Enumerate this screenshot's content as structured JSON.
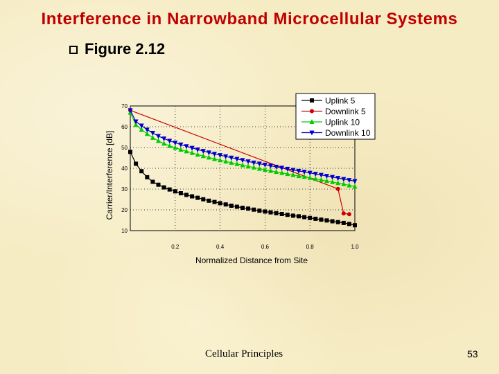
{
  "slide": {
    "title": "Interference in Narrowband Microcellular Systems",
    "bullet": "Figure 2.12",
    "footer_text": "Cellular Principles",
    "page_number": "53"
  },
  "chart_data": {
    "type": "line",
    "xlabel": "Normalized Distance from Site",
    "ylabel": "Carrier/Interference [dB]",
    "xlim": [
      0.0,
      1.0
    ],
    "ylim": [
      10,
      70
    ],
    "x_ticks": [
      "0.2",
      "0.4",
      "0.6",
      "0.8",
      "1.0"
    ],
    "y_ticks": [
      "10",
      "20",
      "30",
      "40",
      "50",
      "60",
      "70"
    ],
    "grid": true,
    "legend_position": "top-right",
    "series": [
      {
        "name": "Uplink 5",
        "color": "#000000",
        "marker": "square",
        "x": [
          0.0,
          0.025,
          0.05,
          0.075,
          0.1,
          0.125,
          0.15,
          0.175,
          0.2,
          0.225,
          0.25,
          0.275,
          0.3,
          0.325,
          0.35,
          0.375,
          0.4,
          0.425,
          0.45,
          0.475,
          0.5,
          0.525,
          0.55,
          0.575,
          0.6,
          0.625,
          0.65,
          0.675,
          0.7,
          0.725,
          0.75,
          0.775,
          0.8,
          0.825,
          0.85,
          0.875,
          0.9,
          0.925,
          0.95,
          0.975,
          1.0
        ],
        "y": [
          47.9,
          42.2,
          38.6,
          35.7,
          33.5,
          32.1,
          30.8,
          29.8,
          28.9,
          28.0,
          27.2,
          26.5,
          25.8,
          25.1,
          24.4,
          23.8,
          23.2,
          22.6,
          22.0,
          21.5,
          21.0,
          20.6,
          20.1,
          19.6,
          19.2,
          18.8,
          18.4,
          18.0,
          17.6,
          17.2,
          16.9,
          16.5,
          16.1,
          15.7,
          15.3,
          14.9,
          14.5,
          14.1,
          13.7,
          13.2,
          12.6
        ]
      },
      {
        "name": "Downlink 5",
        "color": "#cc0000",
        "marker": "circle",
        "x": [
          0.0,
          0.925,
          0.95,
          0.975
        ],
        "y": [
          67.9,
          30.1,
          18.3,
          17.9
        ]
      },
      {
        "name": "Uplink 10",
        "color": "#00cc00",
        "marker": "triangle-up",
        "x": [
          0.0,
          0.025,
          0.05,
          0.075,
          0.1,
          0.125,
          0.15,
          0.175,
          0.2,
          0.225,
          0.25,
          0.275,
          0.3,
          0.325,
          0.35,
          0.375,
          0.4,
          0.425,
          0.45,
          0.475,
          0.5,
          0.525,
          0.55,
          0.575,
          0.6,
          0.625,
          0.65,
          0.675,
          0.7,
          0.725,
          0.75,
          0.775,
          0.8,
          0.825,
          0.85,
          0.875,
          0.9,
          0.925,
          0.95,
          0.975,
          1.0
        ],
        "y": [
          66.8,
          60.9,
          58.6,
          56.6,
          54.7,
          53.2,
          51.9,
          50.8,
          49.9,
          49.0,
          48.2,
          47.4,
          46.6,
          45.9,
          45.2,
          44.5,
          43.9,
          43.3,
          42.7,
          42.1,
          41.5,
          40.9,
          40.4,
          39.8,
          39.3,
          38.8,
          38.3,
          37.8,
          37.3,
          36.8,
          36.3,
          35.9,
          35.4,
          34.9,
          34.4,
          33.9,
          33.4,
          32.9,
          32.4,
          31.8,
          31.2
        ]
      },
      {
        "name": "Downlink 10",
        "color": "#0000cc",
        "marker": "triangle-down",
        "x": [
          0.0,
          0.025,
          0.05,
          0.075,
          0.1,
          0.125,
          0.15,
          0.175,
          0.2,
          0.225,
          0.25,
          0.275,
          0.3,
          0.325,
          0.35,
          0.375,
          0.4,
          0.425,
          0.45,
          0.475,
          0.5,
          0.525,
          0.55,
          0.575,
          0.6,
          0.625,
          0.65,
          0.675,
          0.7,
          0.725,
          0.75,
          0.775,
          0.8,
          0.825,
          0.85,
          0.875,
          0.9,
          0.925,
          0.95,
          0.975,
          1.0
        ],
        "y": [
          67.9,
          62.5,
          60.5,
          58.6,
          57.0,
          55.5,
          54.3,
          53.2,
          52.3,
          51.4,
          50.6,
          49.8,
          49.0,
          48.3,
          47.6,
          46.9,
          46.3,
          45.7,
          45.1,
          44.5,
          43.9,
          43.3,
          42.7,
          42.2,
          41.7,
          41.2,
          40.7,
          40.2,
          39.7,
          39.2,
          38.7,
          38.3,
          37.8,
          37.3,
          36.8,
          36.3,
          35.8,
          35.3,
          34.8,
          34.3,
          33.8
        ]
      }
    ]
  }
}
